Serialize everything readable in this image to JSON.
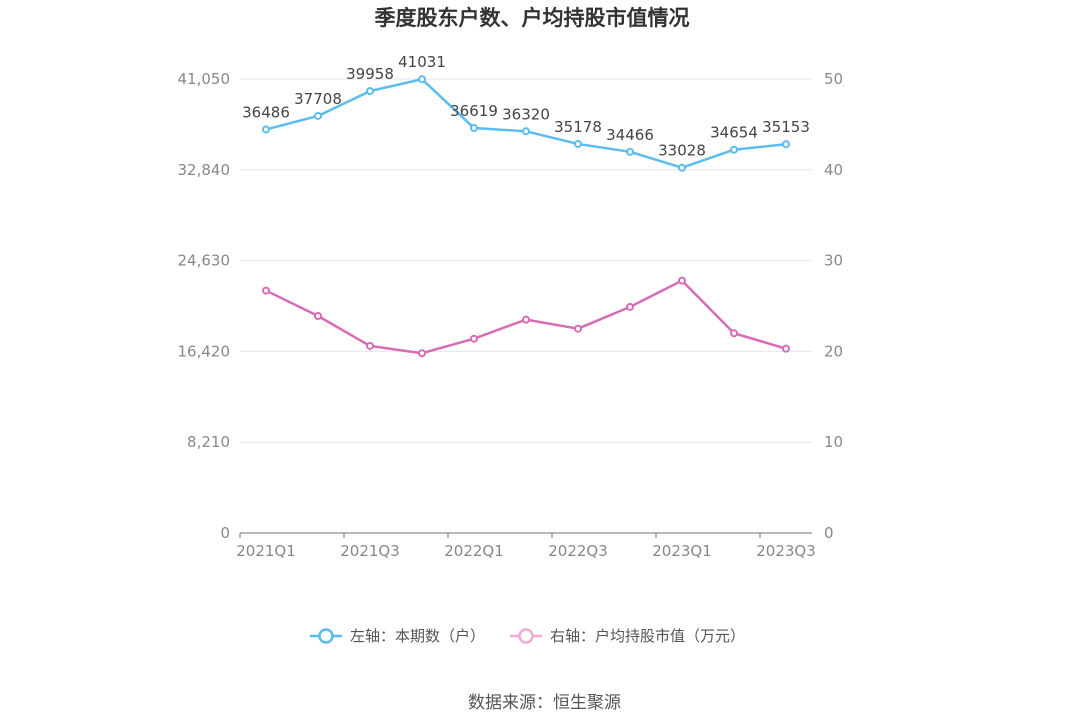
{
  "chart_data": {
    "type": "line",
    "title": "季度股东户数、户均持股市值情况",
    "categories": [
      "2021Q1",
      "2021Q2",
      "2021Q3",
      "2021Q4",
      "2022Q1",
      "2022Q2",
      "2022Q3",
      "2022Q4",
      "2023Q1",
      "2023Q2",
      "2023Q3"
    ],
    "x_tick_labels": [
      "2021Q1",
      "2021Q3",
      "2022Q1",
      "2022Q3",
      "2023Q1",
      "2023Q3"
    ],
    "left_axis": {
      "ticks": [
        "0",
        "8,210",
        "16,420",
        "24,630",
        "32,840",
        "41,050"
      ],
      "ylim": [
        0,
        41050
      ]
    },
    "right_axis": {
      "ticks": [
        "0",
        "10",
        "20",
        "30",
        "40",
        "50"
      ],
      "ylim": [
        0,
        50
      ]
    },
    "series": [
      {
        "name": "左轴：本期数（户）",
        "axis": "left",
        "color": "#5bbcf0",
        "values": [
          36486,
          37708,
          39958,
          41031,
          36619,
          36320,
          35178,
          34466,
          33028,
          34654,
          35153
        ],
        "labels": [
          "36486",
          "37708",
          "39958",
          "41031",
          "36619",
          "36320",
          "35178",
          "34466",
          "33028",
          "34654",
          "35153"
        ]
      },
      {
        "name": "右轴：户均持股市值（万元）",
        "axis": "right",
        "color": "#d96bb5",
        "legend_color": "#f0a9d4",
        "values": [
          26.7,
          23.9,
          20.6,
          19.8,
          21.4,
          23.5,
          22.5,
          24.9,
          27.8,
          22.0,
          20.3
        ]
      }
    ],
    "grid": true,
    "legend_position": "bottom"
  },
  "footer": {
    "source": "数据来源：恒生聚源"
  }
}
